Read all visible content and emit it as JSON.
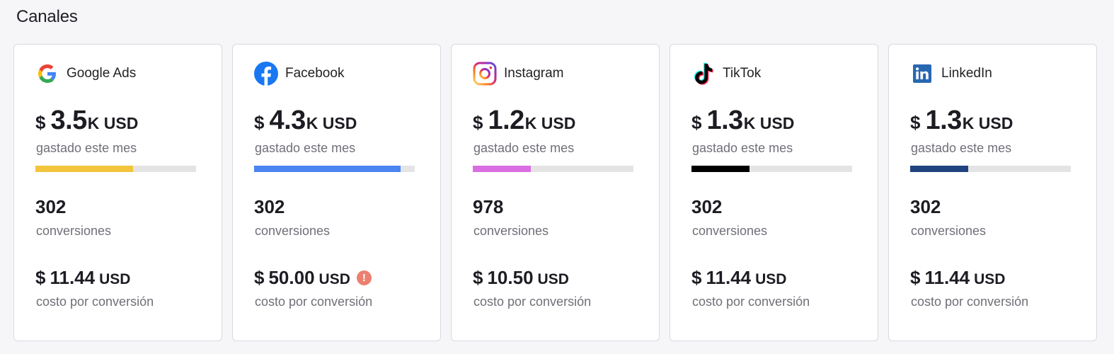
{
  "section_title": "Canales",
  "labels": {
    "spent": "gastado este mes",
    "conversions": "conversiones",
    "cost_per_conversion": "costo por conversión"
  },
  "channels": [
    {
      "name": "Google Ads",
      "icon": "google-icon",
      "spend_currency": "$",
      "spend_value": "3.5",
      "spend_unit": "K USD",
      "spend_fraction": 0.61,
      "bar_color": "#f2c53d",
      "conversions": "302",
      "cpc_currency": "$",
      "cpc_value": "11.44",
      "cpc_unit": "USD",
      "warning": false
    },
    {
      "name": "Facebook",
      "icon": "facebook-icon",
      "spend_currency": "$",
      "spend_value": "4.3",
      "spend_unit": "K USD",
      "spend_fraction": 0.91,
      "bar_color": "#4a85f2",
      "conversions": "302",
      "cpc_currency": "$",
      "cpc_value": "50.00",
      "cpc_unit": "USD",
      "warning": true,
      "warning_glyph": "!"
    },
    {
      "name": "Instagram",
      "icon": "instagram-icon",
      "spend_currency": "$",
      "spend_value": "1.2",
      "spend_unit": "K USD",
      "spend_fraction": 0.36,
      "bar_color": "#d96ee2",
      "conversions": "978",
      "cpc_currency": "$",
      "cpc_value": "10.50",
      "cpc_unit": "USD",
      "warning": false
    },
    {
      "name": "TikTok",
      "icon": "tiktok-icon",
      "spend_currency": "$",
      "spend_value": "1.3",
      "spend_unit": "K USD",
      "spend_fraction": 0.36,
      "bar_color": "#000000",
      "conversions": "302",
      "cpc_currency": "$",
      "cpc_value": "11.44",
      "cpc_unit": "USD",
      "warning": false
    },
    {
      "name": "LinkedIn",
      "icon": "linkedin-icon",
      "spend_currency": "$",
      "spend_value": "1.3",
      "spend_unit": "K USD",
      "spend_fraction": 0.36,
      "bar_color": "#1f4480",
      "conversions": "302",
      "cpc_currency": "$",
      "cpc_value": "11.44",
      "cpc_unit": "USD",
      "warning": false
    }
  ]
}
